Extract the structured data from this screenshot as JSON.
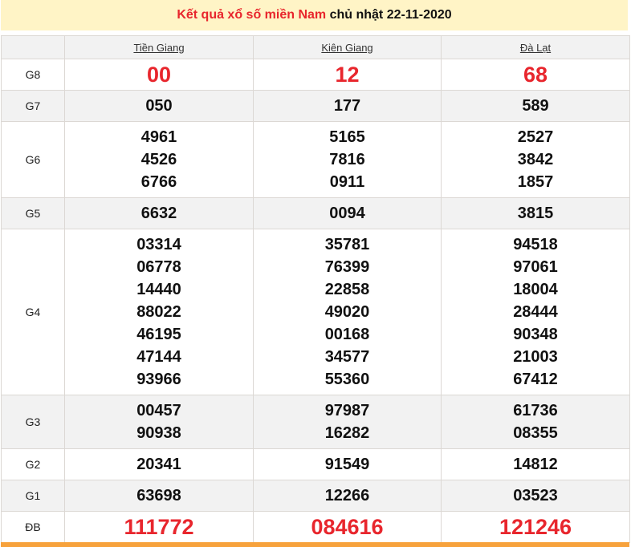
{
  "title": {
    "red": "Kết quả xổ số miền Nam",
    "black": "chủ nhật 22-11-2020"
  },
  "provinces": [
    "Tiền Giang",
    "Kiên Giang",
    "Đà Lạt"
  ],
  "rows": [
    {
      "label": "G8",
      "big": true,
      "values": [
        [
          "00"
        ],
        [
          "12"
        ],
        [
          "68"
        ]
      ]
    },
    {
      "label": "G7",
      "values": [
        [
          "050"
        ],
        [
          "177"
        ],
        [
          "589"
        ]
      ]
    },
    {
      "label": "G6",
      "values": [
        [
          "4961",
          "4526",
          "6766"
        ],
        [
          "5165",
          "7816",
          "0911"
        ],
        [
          "2527",
          "3842",
          "1857"
        ]
      ]
    },
    {
      "label": "G5",
      "values": [
        [
          "6632"
        ],
        [
          "0094"
        ],
        [
          "3815"
        ]
      ]
    },
    {
      "label": "G4",
      "values": [
        [
          "03314",
          "06778",
          "14440",
          "88022",
          "46195",
          "47144",
          "93966"
        ],
        [
          "35781",
          "76399",
          "22858",
          "49020",
          "00168",
          "34577",
          "55360"
        ],
        [
          "94518",
          "97061",
          "18004",
          "28444",
          "90348",
          "21003",
          "67412"
        ]
      ]
    },
    {
      "label": "G3",
      "values": [
        [
          "00457",
          "90938"
        ],
        [
          "97987",
          "16282"
        ],
        [
          "61736",
          "08355"
        ]
      ]
    },
    {
      "label": "G2",
      "values": [
        [
          "20341"
        ],
        [
          "91549"
        ],
        [
          "14812"
        ]
      ]
    },
    {
      "label": "G1",
      "values": [
        [
          "63698"
        ],
        [
          "12266"
        ],
        [
          "03523"
        ]
      ]
    },
    {
      "label": "ĐB",
      "big": true,
      "values": [
        [
          "111772"
        ],
        [
          "084616"
        ],
        [
          "121246"
        ]
      ]
    }
  ],
  "colors": {
    "accent": "#e8262d",
    "title_bg": "#fff4c6",
    "bottom_bar": "#f7a23c"
  }
}
